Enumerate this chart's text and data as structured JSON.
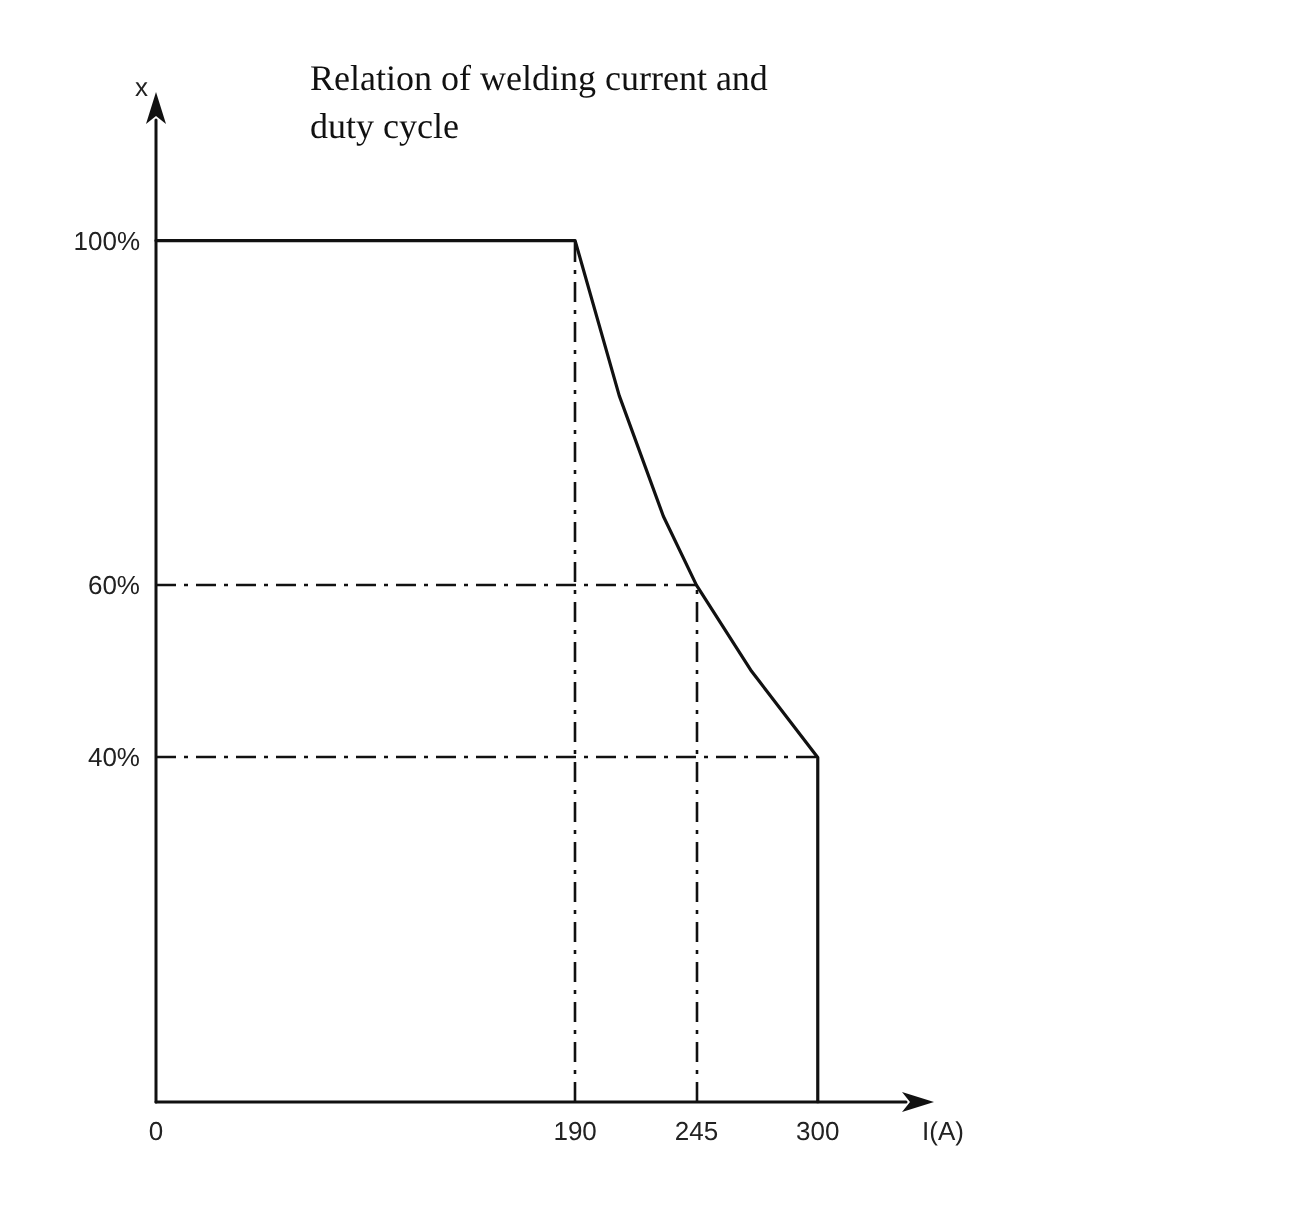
{
  "chart_data": {
    "type": "line",
    "title": "Relation of welding current and duty cycle",
    "xlabel": "I(A)",
    "ylabel": "x",
    "x": [
      0,
      190,
      210,
      230,
      245,
      270,
      300,
      300
    ],
    "series": [
      {
        "color": "#111111",
        "values": [
          100,
          100,
          82,
          68,
          60,
          50,
          40,
          0
        ]
      }
    ],
    "xlim": [
      0,
      340
    ],
    "xticks": [
      0,
      190,
      245,
      300
    ],
    "ylim": [
      0,
      114
    ],
    "yticks": [
      {
        "value": 40,
        "label": "40%"
      },
      {
        "value": 60,
        "label": "60%"
      },
      {
        "value": 100,
        "label": "100%"
      }
    ],
    "ref_lines": [
      {
        "axis": "x",
        "value": 190,
        "color": "#111111",
        "line_style": "dashed"
      },
      {
        "axis": "x",
        "value": 245,
        "color": "#111111",
        "line_style": "dashed"
      },
      {
        "axis": "y",
        "value": 60,
        "color": "#111111",
        "line_style": "dashed"
      },
      {
        "axis": "y",
        "value": 40,
        "color": "#111111",
        "line_style": "dashed"
      }
    ],
    "marker": "none",
    "line_style": "solid",
    "grid": false
  }
}
